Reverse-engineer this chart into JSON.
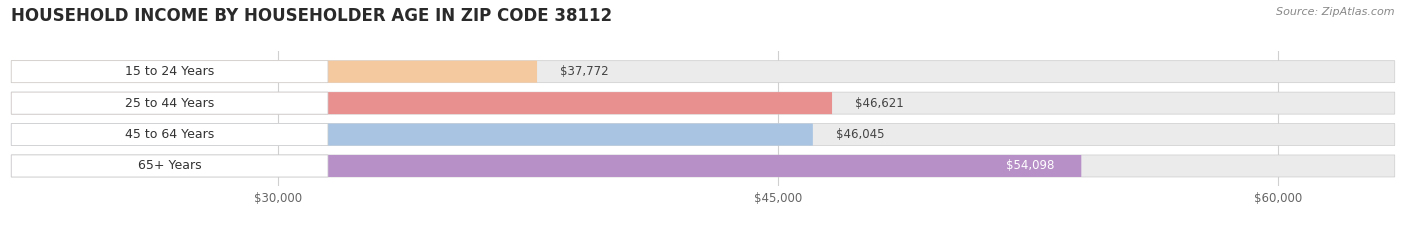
{
  "title": "HOUSEHOLD INCOME BY HOUSEHOLDER AGE IN ZIP CODE 38112",
  "source": "Source: ZipAtlas.com",
  "categories": [
    "15 to 24 Years",
    "25 to 44 Years",
    "45 to 64 Years",
    "65+ Years"
  ],
  "values": [
    37772,
    46621,
    46045,
    54098
  ],
  "bar_colors": [
    "#f5c9a0",
    "#e89090",
    "#a8c4e2",
    "#b890c8"
  ],
  "label_bg_color": "#ffffff",
  "xlim_min": 22000,
  "xlim_max": 63500,
  "xticks": [
    30000,
    45000,
    60000
  ],
  "xtick_labels": [
    "$30,000",
    "$45,000",
    "$60,000"
  ],
  "background_color": "#ffffff",
  "bar_bg_color": "#ebebeb",
  "grid_color": "#d0d0d0",
  "title_fontsize": 12,
  "source_fontsize": 8,
  "label_fontsize": 9,
  "value_fontsize": 8.5,
  "tick_fontsize": 8.5
}
